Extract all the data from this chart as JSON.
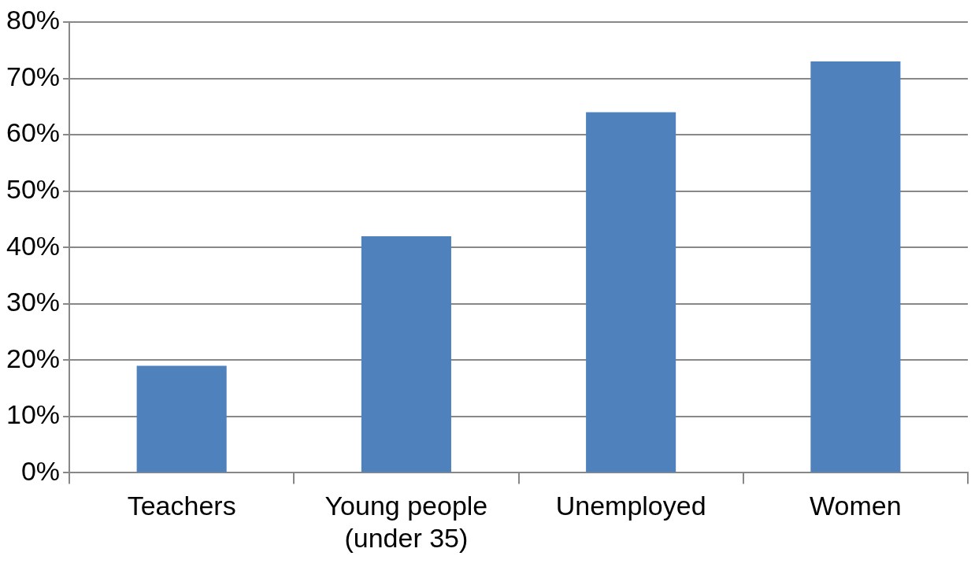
{
  "chart_data": {
    "type": "bar",
    "categories": [
      "Teachers",
      "Young people (under 35)",
      "Unemployed",
      "Women"
    ],
    "values": [
      19,
      42,
      64,
      73
    ],
    "color": "#4f81bd",
    "ylim": [
      0,
      80
    ],
    "yticks": [
      {
        "value": 0,
        "label": "0%"
      },
      {
        "value": 10,
        "label": "10%"
      },
      {
        "value": 20,
        "label": "20%"
      },
      {
        "value": 30,
        "label": "30%"
      },
      {
        "value": 40,
        "label": "40%"
      },
      {
        "value": 50,
        "label": "50%"
      },
      {
        "value": 60,
        "label": "60%"
      },
      {
        "value": 70,
        "label": "70%"
      },
      {
        "value": 80,
        "label": "80%"
      }
    ],
    "grid": "y",
    "legend": false
  }
}
